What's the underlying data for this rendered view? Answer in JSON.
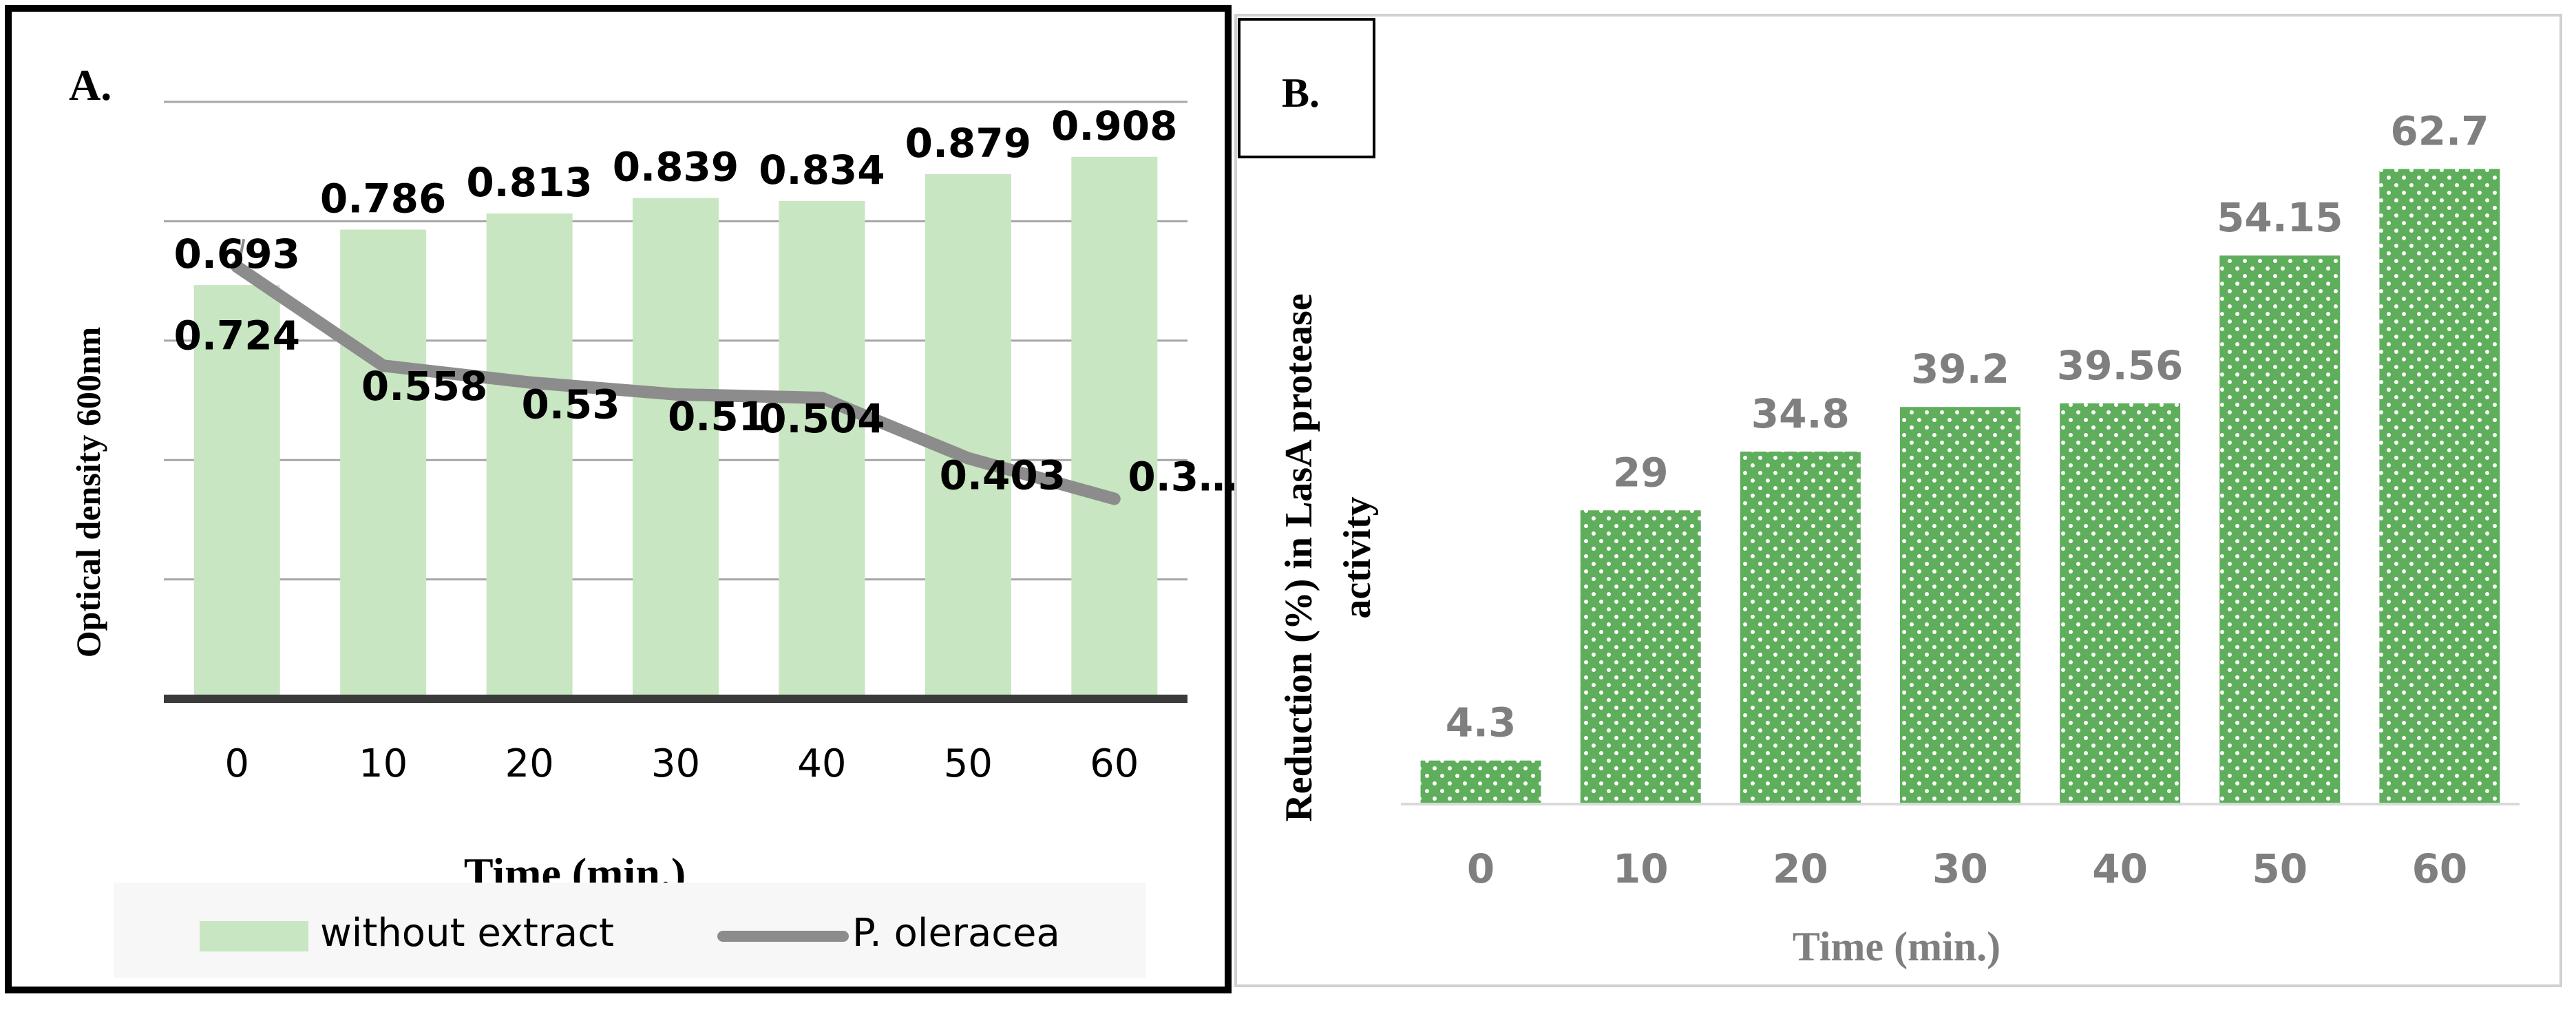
{
  "colors": {
    "bar_light_green": "#c8e6c1",
    "line_gray": "#8c8c8c",
    "bar_dotted_green": "#5fae5c",
    "label_gray": "#7f7f7f",
    "grid_gray": "#a6a6a6",
    "axis_dark": "#3a3a3a",
    "text_black": "#000000"
  },
  "chart_data": [
    {
      "panel": "A.",
      "type": "bar+line",
      "categories": [
        "0",
        "10",
        "20",
        "30",
        "40",
        "50",
        "60"
      ],
      "series": [
        {
          "name": "without extract",
          "kind": "bar",
          "values": [
            0.693,
            0.786,
            0.813,
            0.839,
            0.834,
            0.879,
            0.908
          ],
          "labels": [
            "0.693",
            "0.786",
            "0.813",
            "0.839",
            "0.834",
            "0.879",
            "0.908"
          ]
        },
        {
          "name": "P. oleracea",
          "kind": "line",
          "values": [
            0.724,
            0.558,
            0.53,
            0.51,
            0.504,
            0.403,
            0.335
          ],
          "labels": [
            "0.724",
            "0.558",
            "0.53",
            "0.51",
            "0.504",
            "0.403",
            "0.3…"
          ]
        }
      ],
      "xlabel": "Time (min.)",
      "ylabel": "Optical density 600nm",
      "ylim": [
        0,
        1
      ],
      "gridlines": true,
      "legend": "bottom"
    },
    {
      "panel": "B.",
      "type": "bar",
      "categories": [
        "0",
        "10",
        "20",
        "30",
        "40",
        "50",
        "60"
      ],
      "values": [
        4.3,
        29,
        34.8,
        39.2,
        39.56,
        54.15,
        62.7
      ],
      "labels": [
        "4.3",
        "29",
        "34.8",
        "39.2",
        "39.56",
        "54.15",
        "62.7"
      ],
      "xlabel": "Time (min.)",
      "ylabel": [
        "Reduction (%) in LasA protease",
        "activity"
      ],
      "ylim": [
        0,
        70
      ],
      "gridlines": false
    }
  ]
}
